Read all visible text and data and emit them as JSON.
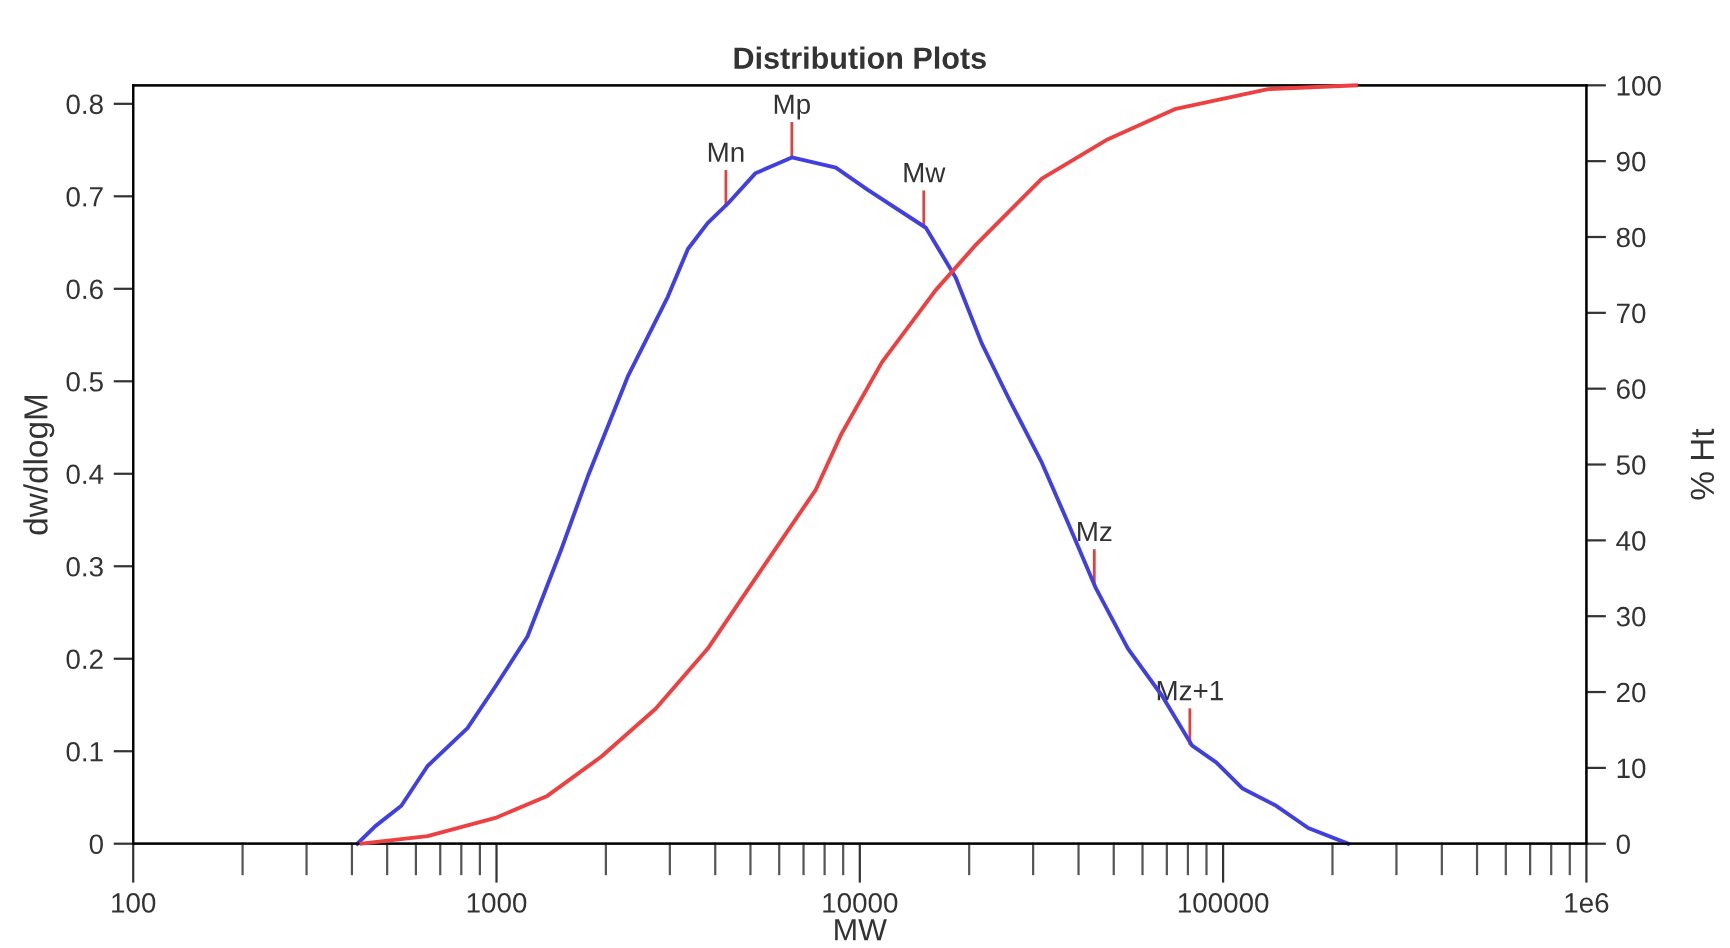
{
  "chart_data": {
    "type": "line",
    "title": "Distribution Plots",
    "xlabel": "MW",
    "ylabel": "dw/dlogM",
    "y2label": "% Ht",
    "log": "x",
    "grid": false,
    "line_style": "solid",
    "marker": "none",
    "xlim": [
      100,
      1000000
    ],
    "xticks": [
      {
        "value": 100,
        "label": "100"
      },
      {
        "value": 200,
        "label": null
      },
      {
        "value": 300,
        "label": null
      },
      {
        "value": 400,
        "label": null
      },
      {
        "value": 500,
        "label": null
      },
      {
        "value": 600,
        "label": null
      },
      {
        "value": 700,
        "label": null
      },
      {
        "value": 800,
        "label": null
      },
      {
        "value": 900,
        "label": null
      },
      {
        "value": 1000,
        "label": "1000"
      },
      {
        "value": 2000,
        "label": null
      },
      {
        "value": 3000,
        "label": null
      },
      {
        "value": 4000,
        "label": null
      },
      {
        "value": 5000,
        "label": null
      },
      {
        "value": 6000,
        "label": null
      },
      {
        "value": 7000,
        "label": null
      },
      {
        "value": 8000,
        "label": null
      },
      {
        "value": 9000,
        "label": null
      },
      {
        "value": 10000,
        "label": "10000"
      },
      {
        "value": 20000,
        "label": null
      },
      {
        "value": 30000,
        "label": null
      },
      {
        "value": 40000,
        "label": null
      },
      {
        "value": 50000,
        "label": null
      },
      {
        "value": 60000,
        "label": null
      },
      {
        "value": 70000,
        "label": null
      },
      {
        "value": 80000,
        "label": null
      },
      {
        "value": 90000,
        "label": null
      },
      {
        "value": 100000,
        "label": "100000"
      },
      {
        "value": 200000,
        "label": null
      },
      {
        "value": 300000,
        "label": null
      },
      {
        "value": 400000,
        "label": null
      },
      {
        "value": 500000,
        "label": null
      },
      {
        "value": 600000,
        "label": null
      },
      {
        "value": 700000,
        "label": null
      },
      {
        "value": 800000,
        "label": null
      },
      {
        "value": 900000,
        "label": null
      },
      {
        "value": 1000000,
        "label": "1e6"
      }
    ],
    "ylim": [
      0,
      0.82
    ],
    "yticks": [
      0,
      0.1,
      0.2,
      0.3,
      0.4,
      0.5,
      0.6,
      0.7,
      0.8
    ],
    "y2lim": [
      0,
      100
    ],
    "y2ticks": [
      0,
      10,
      20,
      30,
      40,
      50,
      60,
      70,
      80,
      90,
      100
    ],
    "series": [
      {
        "color": "#4040e0",
        "x": [
          414,
          464,
          547,
          646,
          832,
          993,
          1217,
          1510,
          1783,
          2297,
          2959,
          3364,
          3811,
          4329,
          5164,
          6500,
          8590,
          10520,
          15200,
          18370,
          21660,
          25580,
          31700,
          37410,
          44670,
          54700,
          67900,
          82200,
          95700,
          112800,
          140000,
          171500,
          220800
        ],
        "values": [
          0,
          0.019,
          0.041,
          0.084,
          0.125,
          0.17,
          0.224,
          0.319,
          0.397,
          0.505,
          0.591,
          0.643,
          0.671,
          0.692,
          0.725,
          0.742,
          0.731,
          0.707,
          0.666,
          0.612,
          0.541,
          0.483,
          0.412,
          0.347,
          0.276,
          0.211,
          0.16,
          0.106,
          0.088,
          0.06,
          0.041,
          0.017,
          0
        ]
      },
      {
        "color": "#ee4040",
        "axis": "y2",
        "x": [
          425,
          646,
          993,
          1380,
          1945,
          2742,
          3811,
          5370,
          7570,
          8913,
          11510,
          16180,
          20890,
          31700,
          48200,
          74100,
          133000,
          232000
        ],
        "values": [
          0,
          1.0,
          3.4,
          6.3,
          11.5,
          17.8,
          25.7,
          36.2,
          46.7,
          54.1,
          63.5,
          73.0,
          79.0,
          87.7,
          92.9,
          96.9,
          99.5,
          100
        ]
      }
    ],
    "annotations": [
      {
        "text": "Mn",
        "x": 4280,
        "y": 0.69
      },
      {
        "text": "Mp",
        "x": 6500,
        "y": 0.742
      },
      {
        "text": "Mw",
        "x": 15000,
        "y": 0.668
      },
      {
        "text": "Mz",
        "x": 44200,
        "y": 0.28
      },
      {
        "text": "Mz+1",
        "x": 81000,
        "y": 0.108
      }
    ]
  }
}
